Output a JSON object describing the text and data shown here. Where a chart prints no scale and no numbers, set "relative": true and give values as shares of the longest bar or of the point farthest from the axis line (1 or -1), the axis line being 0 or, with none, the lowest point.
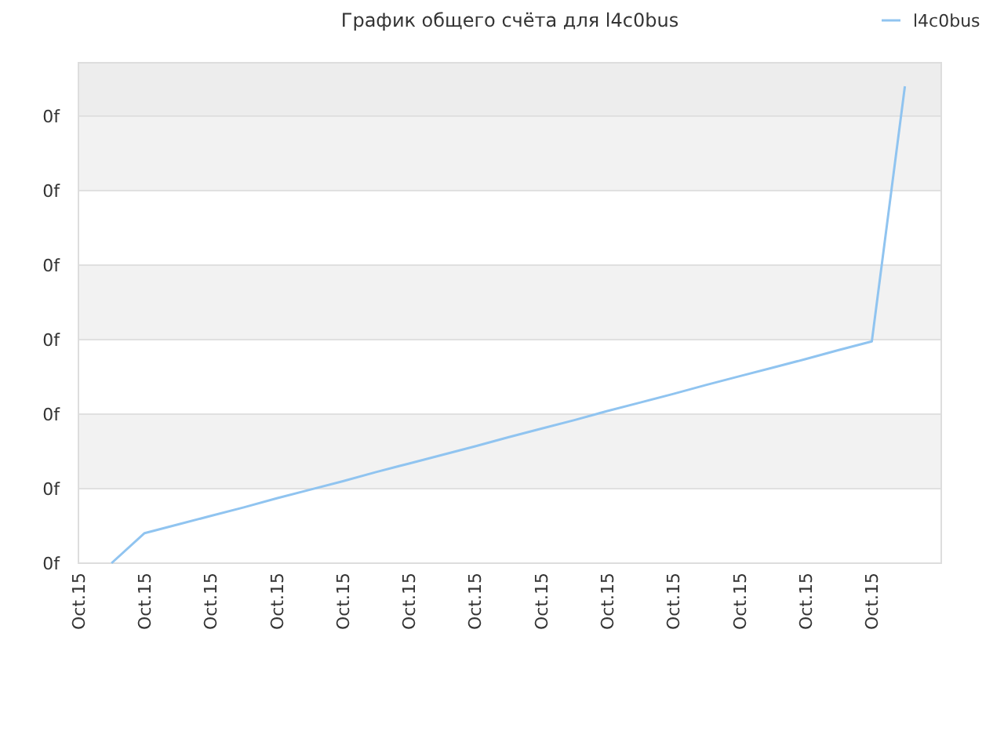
{
  "chart_data": {
    "type": "line",
    "title": "График общего счёта для l4c0bus",
    "relative": true,
    "categories": [
      "Oct.15",
      null,
      "Oct.15",
      null,
      "Oct.15",
      null,
      "Oct.15",
      null,
      "Oct.15",
      null,
      "Oct.15",
      null,
      "Oct.15",
      null,
      "Oct.15",
      null,
      "Oct.15",
      null,
      "Oct.15",
      null,
      "Oct.15",
      null,
      "Oct.15",
      null,
      "Oct.15",
      null
    ],
    "series": [
      {
        "name": "l4c0bus",
        "color": "#90c4f0",
        "values": [
          null,
          0,
          0.063,
          0.081,
          0.099,
          0.117,
          0.136,
          0.154,
          0.172,
          0.191,
          0.209,
          0.227,
          0.245,
          0.264,
          0.282,
          0.3,
          0.319,
          0.337,
          0.355,
          0.374,
          0.392,
          0.41,
          0.428,
          0.447,
          0.465,
          1
        ]
      }
    ],
    "annotations": [
      "0f",
      "0f",
      "0f",
      "0f",
      "0f",
      "0f",
      "0f"
    ],
    "legend": "top right",
    "marker": "none",
    "line_style": "solid"
  }
}
